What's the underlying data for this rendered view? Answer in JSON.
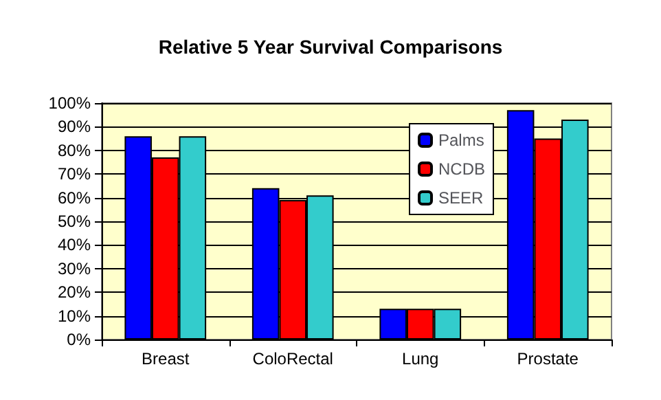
{
  "chart_data": {
    "type": "bar",
    "title": "Relative 5 Year Survival Comparisons",
    "categories": [
      "Breast",
      "ColoRectal",
      "Lung",
      "Prostate"
    ],
    "series": [
      {
        "name": "Palms",
        "color": "#0000ff",
        "values": [
          86,
          64,
          13,
          97
        ]
      },
      {
        "name": "NCDB",
        "color": "#ff0000",
        "values": [
          77,
          59,
          13,
          85
        ]
      },
      {
        "name": "SEER",
        "color": "#33cccc",
        "values": [
          86,
          61,
          13,
          93
        ]
      }
    ],
    "ylim": [
      0,
      100
    ],
    "yticks": [
      {
        "value": 0,
        "label": "0%"
      },
      {
        "value": 10,
        "label": "10%"
      },
      {
        "value": 20,
        "label": "20%"
      },
      {
        "value": 30,
        "label": "30%"
      },
      {
        "value": 40,
        "label": "40%"
      },
      {
        "value": 50,
        "label": "50%"
      },
      {
        "value": 60,
        "label": "60%"
      },
      {
        "value": 70,
        "label": "70%"
      },
      {
        "value": 80,
        "label": "80%"
      },
      {
        "value": 90,
        "label": "90%"
      },
      {
        "value": 100,
        "label": "100%"
      }
    ],
    "grid": "y",
    "legend": "top right"
  }
}
